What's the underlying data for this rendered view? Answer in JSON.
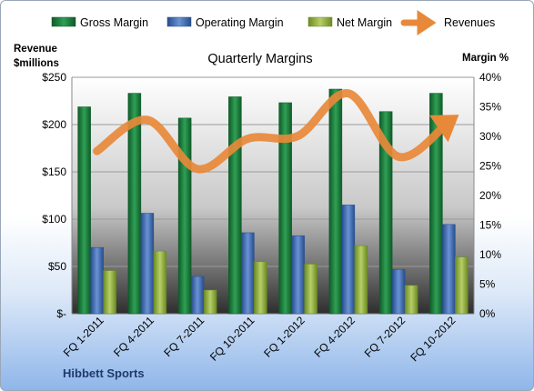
{
  "chart_data": {
    "type": "bar",
    "title": "Quarterly Margins",
    "ylabel_left_line1": "Revenue",
    "ylabel_left_line2": "$millions",
    "ylabel_right": "Margin %",
    "company": "Hibbett Sports",
    "categories": [
      "FQ 1-2011",
      "FQ 4-2011",
      "FQ 7-2011",
      "FQ 10-2011",
      "FQ 1-2012",
      "FQ 4-2012",
      "FQ 7-2012",
      "FQ 10-2012"
    ],
    "left_axis": {
      "ylim": [
        0,
        250
      ],
      "ticks": [
        0,
        50,
        100,
        150,
        200,
        250
      ],
      "tick_labels": [
        "$-",
        "$50",
        "$100",
        "$150",
        "$200",
        "$250"
      ]
    },
    "right_axis": {
      "ylim": [
        0,
        40
      ],
      "ticks": [
        0,
        5,
        10,
        15,
        20,
        25,
        30,
        35,
        40
      ],
      "tick_labels": [
        "0%",
        "5%",
        "10%",
        "15%",
        "20%",
        "25%",
        "30%",
        "35%",
        "40%"
      ]
    },
    "series": [
      {
        "name": "Gross Margin",
        "axis": "right",
        "kind": "bar",
        "color": "#1e7a3c",
        "values": [
          35.0,
          37.3,
          33.1,
          36.7,
          35.7,
          38.0,
          34.2,
          37.3
        ]
      },
      {
        "name": "Operating Margin",
        "axis": "right",
        "kind": "bar",
        "color": "#3f6db5",
        "values": [
          11.2,
          17.0,
          6.3,
          13.7,
          13.2,
          18.4,
          7.5,
          15.1
        ]
      },
      {
        "name": "Net Margin",
        "axis": "right",
        "kind": "bar",
        "color": "#8fae3c",
        "values": [
          7.3,
          10.6,
          4.0,
          8.8,
          8.4,
          11.5,
          4.8,
          9.6
        ]
      },
      {
        "name": "Revenues",
        "axis": "left",
        "kind": "line",
        "color": "#e8893a",
        "values": [
          172,
          205,
          153,
          185,
          188,
          233,
          166,
          203
        ]
      }
    ],
    "grid": true,
    "legend": "top"
  }
}
